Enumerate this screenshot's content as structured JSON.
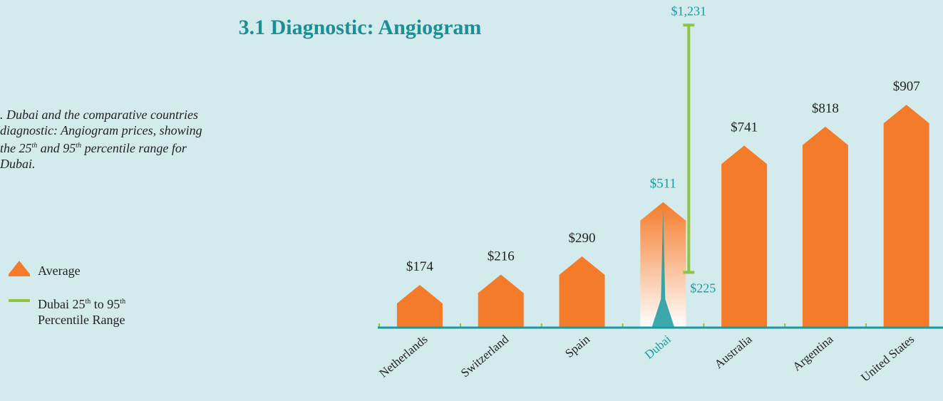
{
  "chart_data": {
    "type": "bar",
    "title": "3.1 Diagnostic: Angiogram",
    "caption": [
      ". Dubai and the comparative countries diagnostic: Angiogram prices, showing the 25",
      "th",
      " and 95",
      "th",
      " percentile range for Dubai."
    ],
    "categories": [
      "Netherlands",
      "Switzerland",
      "Spain",
      "Dubai",
      "Australia",
      "Argentina",
      "United States"
    ],
    "values": [
      174,
      216,
      290,
      511,
      741,
      818,
      907
    ],
    "value_labels": [
      "$174",
      "$216",
      "$290",
      "$511",
      "$741",
      "$818",
      "$907"
    ],
    "color": "#f47b2a",
    "highlight": {
      "index": 3,
      "color": "#1a9aa0"
    },
    "range": {
      "index": 3,
      "low": 225,
      "high": 1231,
      "low_label": "$225",
      "high_label": "$1,231",
      "color": "#8dc63f"
    },
    "legend": {
      "average": "Average",
      "range": [
        "Dubai 25",
        "th",
        " to 95",
        "th",
        "Percentile Range"
      ]
    }
  }
}
